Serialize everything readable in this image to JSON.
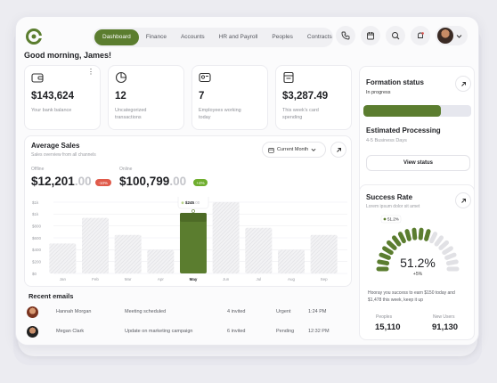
{
  "nav": {
    "items": [
      {
        "label": "Dashboard",
        "active": true
      },
      {
        "label": "Finance",
        "active": false
      },
      {
        "label": "Accounts",
        "active": false
      },
      {
        "label": "HR and Payroll",
        "active": false
      },
      {
        "label": "Peoples",
        "active": false
      },
      {
        "label": "Contracts",
        "active": false
      }
    ]
  },
  "greeting": "Good morning, James!",
  "stats": [
    {
      "value": "$143,624",
      "label": "Your bank balance",
      "icon": "wallet-icon"
    },
    {
      "value": "12",
      "label": "Uncategorized transactions",
      "icon": "pie-chart-icon"
    },
    {
      "value": "7",
      "label": "Employees working today",
      "icon": "id-card-icon"
    },
    {
      "value": "$3,287.49",
      "label": "This week's card spending",
      "icon": "receipt-icon"
    }
  ],
  "sales": {
    "title": "Average Sales",
    "subtitle": "Sales overview from all channels",
    "period": "Current Month",
    "offline_label": "Offline",
    "offline_value": "$12,201",
    "offline_cents": ".00",
    "offline_badge": "-10%",
    "online_label": "Online",
    "online_value": "$100,799",
    "online_cents": ".00",
    "online_badge": "+4%",
    "tooltip_top": "$598",
    "tooltip_top_suffix": ".00",
    "tooltip_bottom": "$245",
    "tooltip_bottom_suffix": ".00"
  },
  "chart_data": {
    "type": "bar",
    "categories": [
      "Jan",
      "Feb",
      "Mar",
      "Apr",
      "May",
      "Jun",
      "Jul",
      "Aug",
      "Sep"
    ],
    "values": [
      420,
      780,
      540,
      330,
      850,
      1000,
      640,
      330,
      540
    ],
    "highlight_index": 4,
    "y_ticks": [
      "$0",
      "$200",
      "$400",
      "$600",
      "$800",
      "$1k",
      "$1k"
    ],
    "ylim": [
      0,
      1000
    ],
    "colors": {
      "bar": "#e3e3e6",
      "highlight": "#5b7d2f"
    }
  },
  "emails": {
    "title": "Recent emails",
    "rows": [
      {
        "name": "Hannah Morgan",
        "subject": "Meeting scheduled",
        "invited": "4 invited",
        "priority": "Urgent",
        "time": "1:24 PM"
      },
      {
        "name": "Megan Clark",
        "subject": "Update on marketing campaign",
        "invited": "6 invited",
        "priority": "Pending",
        "time": "12:32 PM"
      }
    ]
  },
  "formation": {
    "title": "Formation status",
    "status": "In progress",
    "progress": 0.72,
    "est_title": "Estimated Processing",
    "est_value": "4-5 Business Days",
    "button": "View status"
  },
  "success": {
    "title": "Success Rate",
    "subtitle": "Lorem ipsum dolor sit amet",
    "value": "51.2%",
    "tooltip": "51.2%",
    "delta": "+5%",
    "rate": 0.512,
    "message": "Hooray you success to earn $150 today and $1,478 this week, keep it up",
    "peoples_label": "Peoples",
    "peoples_value": "15,110",
    "newusers_label": "New Users",
    "newusers_value": "91,130"
  },
  "colors": {
    "accent": "#5b7d2f",
    "accent_light": "#e8f1dc",
    "danger": "#d9534f"
  }
}
